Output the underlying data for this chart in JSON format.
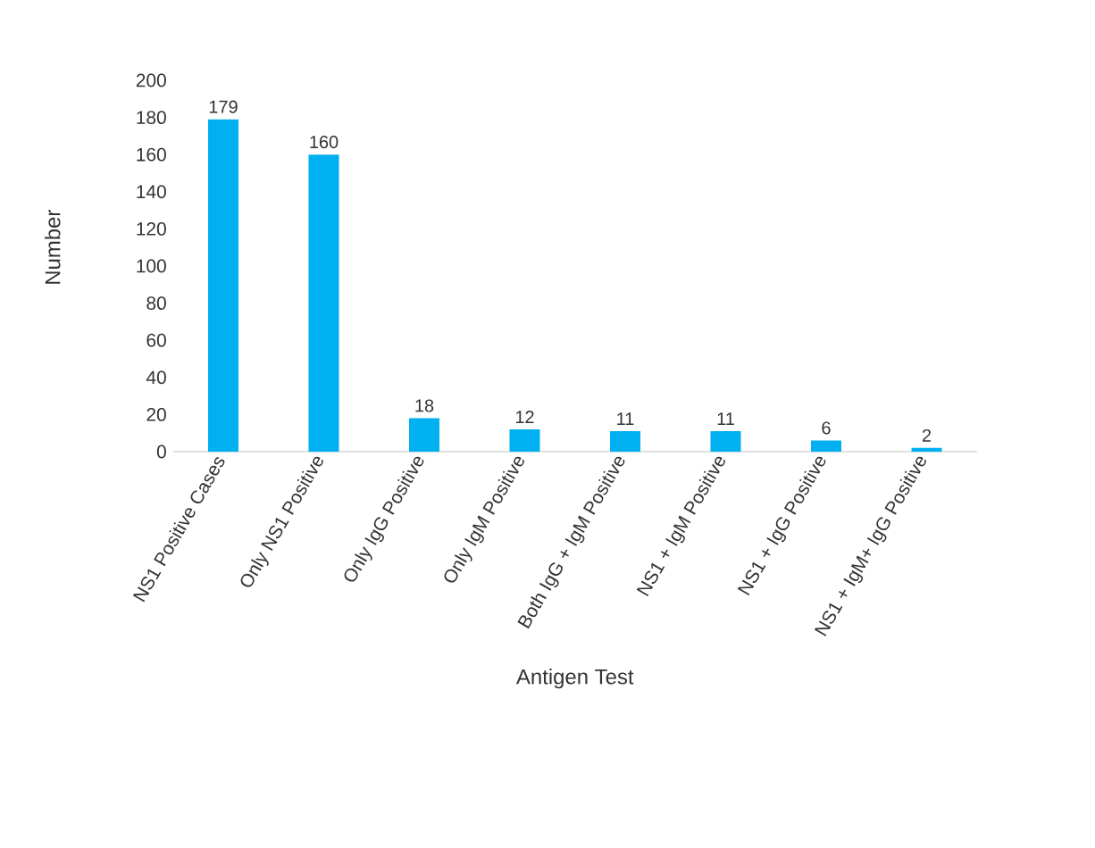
{
  "chart_data": {
    "type": "bar",
    "xlabel": "Antigen Test",
    "ylabel": "Number",
    "categories": [
      "NS1 Positive Cases",
      "Only NS1 Positive",
      "Only IgG Positive",
      "Only IgM Positive",
      "Both IgG + IgM Positive",
      "NS1 + IgM Positive",
      "NS1 + IgG Positive",
      "NS1 + IgM+ IgG Positive"
    ],
    "values": [
      179,
      160,
      18,
      12,
      11,
      11,
      6,
      2
    ],
    "color": "#00b0f0",
    "ylim": [
      0,
      200
    ],
    "yticks": [
      0,
      20,
      40,
      60,
      80,
      100,
      120,
      140,
      160,
      180,
      200
    ],
    "data_labels": true,
    "grid": false
  }
}
